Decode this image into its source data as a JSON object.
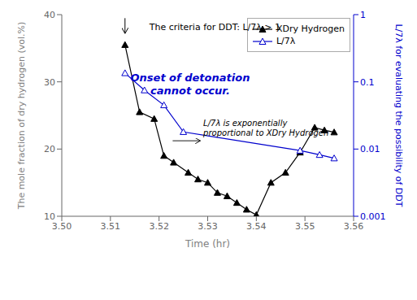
{
  "chart_data": {
    "type": "line",
    "xlabel": "Time (hr)",
    "ylabel": "The mole fraction of dry hydrogen (vol.%)",
    "y2label": "L/7λ for evaluating the possibility of DDT",
    "xlim": [
      3.5,
      3.56
    ],
    "xticks": [
      {
        "value": 3.5,
        "label": "3.50"
      },
      3.51,
      3.52,
      3.53,
      3.54,
      3.55,
      3.56
    ],
    "ylim": [
      10,
      40
    ],
    "yticks": [
      10,
      20,
      30,
      40
    ],
    "y2lim": [
      0.001,
      1
    ],
    "y2ticks": [
      1,
      0.1,
      0.01,
      0.001
    ],
    "log": "y2",
    "grid": false,
    "legend": "upper right",
    "series": [
      {
        "name": "XDry Hydrogen",
        "color": "#000000",
        "marker": "triangle",
        "x": [
          3.513,
          3.516,
          3.519,
          3.521,
          3.523,
          3.526,
          3.528,
          3.53,
          3.532,
          3.534,
          3.536,
          3.538,
          3.54,
          3.543,
          3.546,
          3.549,
          3.552,
          3.554,
          3.556
        ],
        "values": [
          35.5,
          25.5,
          24.5,
          19.0,
          18.0,
          16.5,
          15.5,
          15.0,
          13.5,
          13.0,
          12.0,
          11.0,
          10.2,
          15.0,
          16.5,
          19.5,
          23.2,
          22.8,
          22.5
        ]
      },
      {
        "name": "L/7λ",
        "color": "#0000cd",
        "marker": "triangle-open",
        "axis": "y2",
        "x": [
          3.513,
          3.517,
          3.521,
          3.525,
          3.549,
          3.553,
          3.556
        ],
        "values": [
          0.135,
          0.075,
          0.045,
          0.018,
          0.0095,
          0.0082,
          0.0073
        ]
      }
    ],
    "annotations": [
      [
        "The criteria for DDT: L/7λ > 1"
      ],
      [
        "Onset of detonation",
        "cannot occur."
      ],
      [
        "L/7λ is exponentially",
        "proportional to XDry Hydrogen"
      ]
    ]
  }
}
